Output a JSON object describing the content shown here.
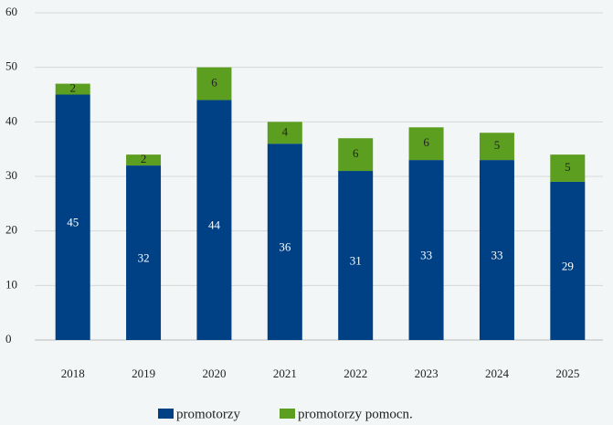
{
  "chart_data": {
    "type": "stacked_bar",
    "categories": [
      "2018",
      "2019",
      "2020",
      "2021",
      "2022",
      "2023",
      "2024",
      "2025"
    ],
    "series": [
      {
        "name": "promotorzy",
        "color": "#004186",
        "values": [
          45,
          32,
          44,
          36,
          31,
          33,
          33,
          29
        ]
      },
      {
        "name": "promotorzy pomocn.",
        "color": "#5c9e1f",
        "values": [
          2,
          2,
          6,
          4,
          6,
          6,
          5,
          5
        ]
      }
    ],
    "ylim": [
      0,
      60
    ],
    "yticks": [
      0,
      10,
      20,
      30,
      40,
      50,
      60
    ],
    "grid": true,
    "legend": "bottom"
  }
}
